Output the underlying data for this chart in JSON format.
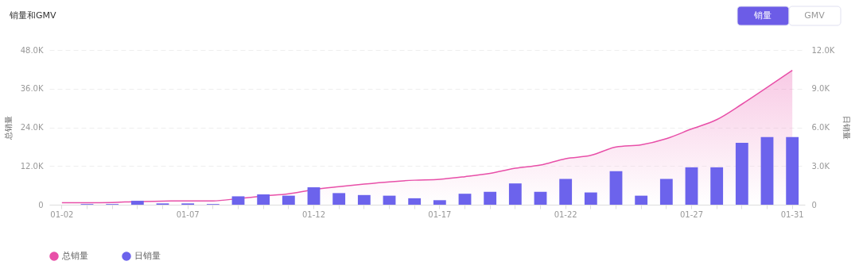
{
  "chart_data": {
    "type": "bar",
    "title": "销量和GMV",
    "ylabel": "总销量",
    "y2label": "日销量",
    "categories": [
      "01-02",
      null,
      null,
      null,
      null,
      "01-07",
      null,
      null,
      null,
      null,
      "01-12",
      null,
      null,
      null,
      null,
      "01-17",
      null,
      null,
      null,
      null,
      "01-22",
      null,
      null,
      null,
      null,
      "01-27",
      null,
      null,
      null,
      "01-31"
    ],
    "series": [
      {
        "name": "总销量",
        "type": "area",
        "color": "#e84fa8",
        "values": [
          600,
          600,
          700,
          1000,
          1100,
          1200,
          1200,
          1900,
          2700,
          3400,
          4700,
          5600,
          6400,
          7100,
          7600,
          7900,
          8700,
          9700,
          11300,
          12300,
          14300,
          15300,
          17900,
          18600,
          20500,
          23500,
          26400,
          31200,
          36400,
          41700
        ]
      },
      {
        "name": "日销量",
        "axis": "y2",
        "color": "#6c63ec",
        "values": [
          0,
          50,
          50,
          300,
          100,
          100,
          50,
          650,
          800,
          700,
          1350,
          900,
          750,
          700,
          500,
          350,
          850,
          1000,
          1650,
          1000,
          2000,
          950,
          2600,
          700,
          2000,
          2900,
          2900,
          4800,
          5250,
          5250
        ]
      }
    ],
    "ylim": [
      0,
      48000
    ],
    "yticks": [
      0,
      {
        "value": 12000,
        "label": "12.0K"
      },
      {
        "value": 24000,
        "label": "24.0K"
      },
      {
        "value": 36000,
        "label": "36.0K"
      },
      {
        "value": 48000,
        "label": "48.0K"
      }
    ],
    "y2lim": [
      0,
      12000
    ],
    "y2ticks": [
      0,
      {
        "value": 3000,
        "label": "3.0K"
      },
      {
        "value": 6000,
        "label": "6.0K"
      },
      {
        "value": 9000,
        "label": "9.0K"
      },
      {
        "value": 12000,
        "label": "12.0K"
      }
    ],
    "grid": "y",
    "legend": "bottom",
    "annotations": [
      "销量",
      "GMV"
    ]
  }
}
